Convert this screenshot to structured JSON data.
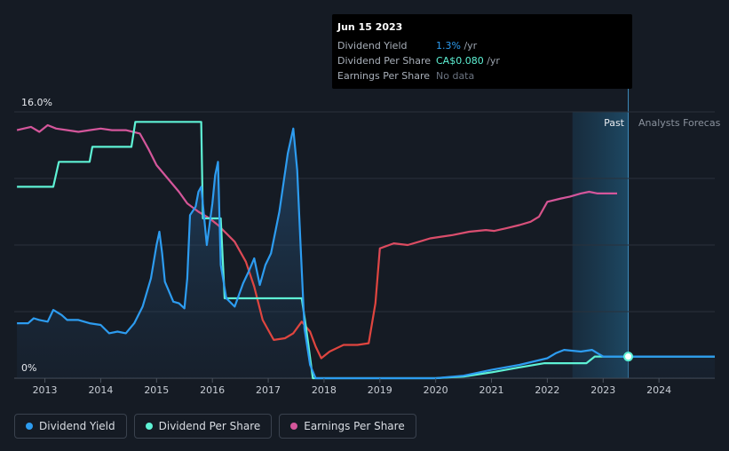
{
  "tooltip": {
    "date": "Jun 15 2023",
    "rows": [
      {
        "label": "Dividend Yield",
        "value": "1.3%",
        "unit": " /yr",
        "color": "#2d9cf0"
      },
      {
        "label": "Dividend Per Share",
        "value": "CA$0.080",
        "unit": " /yr",
        "color": "#5ef2d5"
      },
      {
        "label": "Earnings Per Share",
        "value": "No data",
        "unit": "",
        "color": "#6b7380"
      }
    ]
  },
  "legend": [
    {
      "label": "Dividend Yield",
      "color": "#2d9cf0"
    },
    {
      "label": "Dividend Per Share",
      "color": "#5ef2d5"
    },
    {
      "label": "Earnings Per Share",
      "color": "#d4569b"
    }
  ],
  "regions": {
    "past": "Past",
    "forecast": "Analysts Forecas"
  },
  "chart_data": {
    "type": "line",
    "y_axis_labels": [
      "16.0%",
      "0%"
    ],
    "ylim": [
      0,
      16
    ],
    "xlim": [
      2012.45,
      2025.0
    ],
    "x_ticks": [
      2013,
      2014,
      2015,
      2016,
      2017,
      2018,
      2019,
      2020,
      2021,
      2022,
      2023,
      2024
    ],
    "past_region": [
      2022.45,
      2023.45
    ],
    "highlight_x": 2023.45,
    "grid": true,
    "colors": {
      "yield": "#2d9cf0",
      "dps": "#5ef2d5",
      "eps": "#d4569b",
      "eps_low": "#e0453f"
    },
    "series": [
      {
        "name": "Dividend Yield",
        "key": "yield",
        "x": [
          2012.5,
          2012.7,
          2012.8,
          2012.9,
          2013.05,
          2013.15,
          2013.3,
          2013.4,
          2013.6,
          2013.8,
          2014.0,
          2014.15,
          2014.3,
          2014.45,
          2014.6,
          2014.75,
          2014.9,
          2015.0,
          2015.05,
          2015.1,
          2015.15,
          2015.2,
          2015.3,
          2015.4,
          2015.5,
          2015.55,
          2015.6,
          2015.7,
          2015.75,
          2015.8,
          2015.9,
          2016.0,
          2016.05,
          2016.1,
          2016.15,
          2016.25,
          2016.4,
          2016.55,
          2016.65,
          2016.75,
          2016.85,
          2016.95,
          2017.05,
          2017.2,
          2017.35,
          2017.45,
          2017.52,
          2017.58,
          2017.65,
          2017.75,
          2017.85,
          2018.0,
          2019.0,
          2020.0,
          2020.5,
          2021.0,
          2021.5,
          2022.0,
          2022.15,
          2022.3,
          2022.6,
          2022.8,
          2022.9,
          2023.0,
          2023.45,
          2025.0
        ],
        "values": [
          3.3,
          3.3,
          3.6,
          3.5,
          3.4,
          4.1,
          3.8,
          3.5,
          3.5,
          3.3,
          3.2,
          2.7,
          2.8,
          2.7,
          3.3,
          4.3,
          6.0,
          8.0,
          8.8,
          7.5,
          5.8,
          5.4,
          4.6,
          4.5,
          4.2,
          6.0,
          9.8,
          10.3,
          11.2,
          11.5,
          8.0,
          10.5,
          12.2,
          13.0,
          6.8,
          4.8,
          4.3,
          5.7,
          6.4,
          7.2,
          5.6,
          6.8,
          7.5,
          10.0,
          13.5,
          15.0,
          12.5,
          8.0,
          3.0,
          0.8,
          0.0,
          0.0,
          0.0,
          0.0,
          0.15,
          0.5,
          0.8,
          1.2,
          1.5,
          1.7,
          1.6,
          1.7,
          1.5,
          1.3,
          1.3,
          1.3
        ]
      },
      {
        "name": "Dividend Per Share",
        "key": "dps",
        "x": [
          2012.5,
          2013.15,
          2013.25,
          2013.8,
          2013.85,
          2014.55,
          2014.62,
          2015.8,
          2015.83,
          2016.15,
          2016.22,
          2017.6,
          2017.68,
          2017.8,
          2018.0,
          2019.0,
          2020.0,
          2020.5,
          2021.0,
          2021.5,
          2021.95,
          2022.7,
          2022.85,
          2023.45,
          2025.0
        ],
        "values": [
          11.5,
          11.5,
          13.0,
          13.0,
          13.9,
          13.9,
          15.4,
          15.4,
          9.6,
          9.6,
          4.8,
          4.8,
          3.0,
          0.0,
          0.0,
          0.0,
          0.0,
          0.1,
          0.35,
          0.65,
          0.9,
          0.9,
          1.3,
          1.3,
          1.3
        ]
      },
      {
        "name": "Earnings Per Share",
        "key": "eps",
        "x": [
          2012.5,
          2012.75,
          2012.9,
          2013.05,
          2013.2,
          2013.4,
          2013.6,
          2013.8,
          2014.0,
          2014.2,
          2014.45,
          2014.7,
          2014.85,
          2015.0,
          2015.2,
          2015.4,
          2015.55,
          2015.75,
          2015.95,
          2016.1,
          2016.25,
          2016.4,
          2016.6,
          2016.75,
          2016.9,
          2017.1,
          2017.3,
          2017.45,
          2017.6,
          2017.75,
          2017.85,
          2017.95,
          2018.1,
          2018.35,
          2018.6,
          2018.8,
          2018.92,
          2019.0,
          2019.25,
          2019.5,
          2019.7,
          2019.9,
          2020.1,
          2020.3,
          2020.6,
          2020.9,
          2021.05,
          2021.25,
          2021.5,
          2021.7,
          2021.85,
          2022.0,
          2022.25,
          2022.4,
          2022.6,
          2022.75,
          2022.9,
          2023.05,
          2023.25
        ],
        "values": [
          14.9,
          15.1,
          14.8,
          15.2,
          15.0,
          14.9,
          14.8,
          14.9,
          15.0,
          14.9,
          14.9,
          14.7,
          13.8,
          12.8,
          12.0,
          11.2,
          10.5,
          10.0,
          9.6,
          9.2,
          8.7,
          8.2,
          7.0,
          5.5,
          3.5,
          2.3,
          2.4,
          2.7,
          3.4,
          2.8,
          1.9,
          1.2,
          1.6,
          2.0,
          2.0,
          2.1,
          4.5,
          7.8,
          8.1,
          8.0,
          8.2,
          8.4,
          8.5,
          8.6,
          8.8,
          8.9,
          8.85,
          9.0,
          9.2,
          9.4,
          9.7,
          10.6,
          10.8,
          10.9,
          11.1,
          11.2,
          11.1,
          11.1,
          11.1
        ]
      }
    ]
  }
}
